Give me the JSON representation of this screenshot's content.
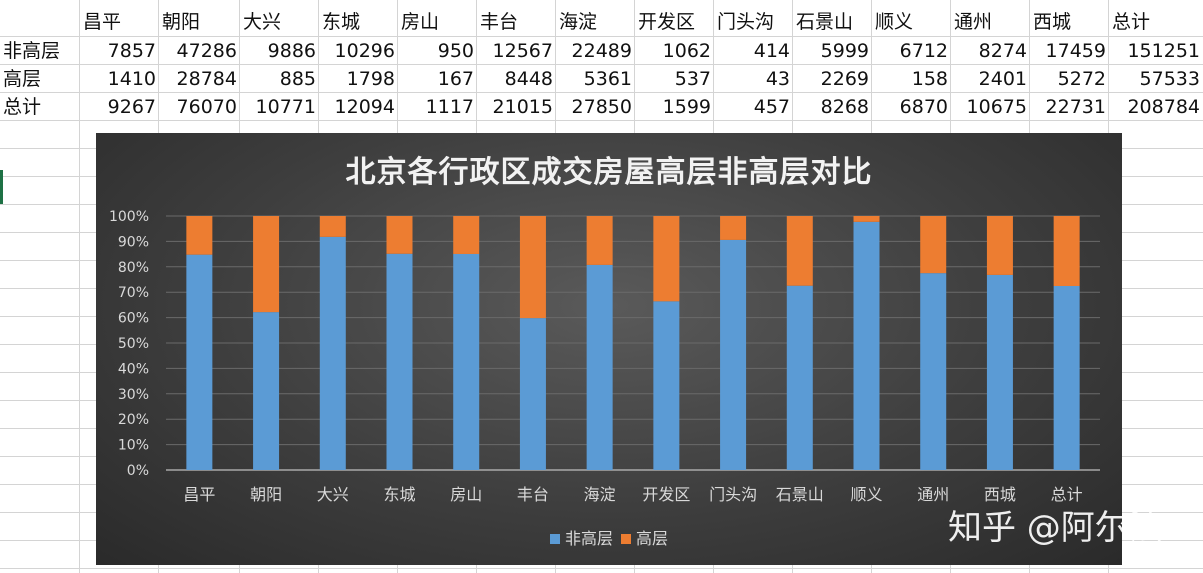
{
  "table": {
    "header": [
      "",
      "昌平",
      "朝阳",
      "大兴",
      "东城",
      "房山",
      "丰台",
      "海淀",
      "开发区",
      "门头沟",
      "石景山",
      "顺义",
      "通州",
      "西城",
      "总计"
    ],
    "rows": [
      {
        "label": "非高层",
        "values": [
          "7857",
          "47286",
          "9886",
          "10296",
          "950",
          "12567",
          "22489",
          "1062",
          "414",
          "5999",
          "6712",
          "8274",
          "17459",
          "151251"
        ]
      },
      {
        "label": "高层",
        "values": [
          "1410",
          "28784",
          "885",
          "1798",
          "167",
          "8448",
          "5361",
          "537",
          "43",
          "2269",
          "158",
          "2401",
          "5272",
          "57533"
        ]
      },
      {
        "label": "总计",
        "values": [
          "9267",
          "76070",
          "10771",
          "12094",
          "1117",
          "21015",
          "27850",
          "1599",
          "457",
          "8268",
          "6870",
          "10675",
          "22731",
          "208784"
        ]
      }
    ]
  },
  "chart_data": {
    "type": "bar",
    "stacked": "percent",
    "title": "北京各行政区成交房屋高层非高层对比",
    "categories": [
      "昌平",
      "朝阳",
      "大兴",
      "东城",
      "房山",
      "丰台",
      "海淀",
      "开发区",
      "门头沟",
      "石景山",
      "顺义",
      "通州",
      "西城",
      "总计"
    ],
    "series": [
      {
        "name": "非高层",
        "color": "#5b9bd5",
        "values": [
          7857,
          47286,
          9886,
          10296,
          950,
          12567,
          22489,
          1062,
          414,
          5999,
          6712,
          8274,
          17459,
          151251
        ]
      },
      {
        "name": "高层",
        "color": "#ed7d31",
        "values": [
          1410,
          28784,
          885,
          1798,
          167,
          8448,
          5361,
          537,
          43,
          2269,
          158,
          2401,
          5272,
          57533
        ]
      }
    ],
    "yticks": [
      "0%",
      "10%",
      "20%",
      "30%",
      "40%",
      "50%",
      "60%",
      "70%",
      "80%",
      "90%",
      "100%"
    ],
    "ylim": [
      0,
      100
    ],
    "grid": true,
    "legend_position": "bottom"
  },
  "watermark": "知乎 @阿尔法"
}
